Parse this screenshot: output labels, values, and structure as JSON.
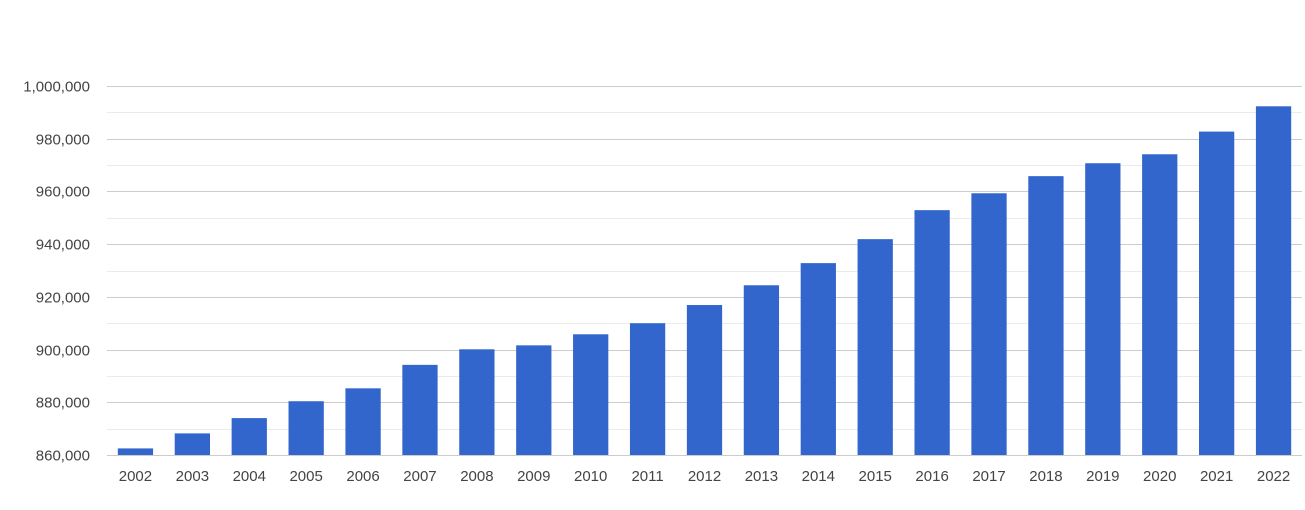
{
  "chart_data": {
    "type": "bar",
    "title": "",
    "xlabel": "",
    "ylabel": "",
    "categories": [
      "2002",
      "2003",
      "2004",
      "2005",
      "2006",
      "2007",
      "2008",
      "2009",
      "2010",
      "2011",
      "2012",
      "2013",
      "2014",
      "2015",
      "2016",
      "2017",
      "2018",
      "2019",
      "2020",
      "2021",
      "2022"
    ],
    "values": [
      862500,
      868200,
      874000,
      880400,
      885300,
      894200,
      900100,
      901600,
      905800,
      910000,
      916900,
      924400,
      932800,
      941900,
      952900,
      959300,
      965800,
      970700,
      974100,
      982700,
      992300
    ],
    "ylim": [
      860000,
      1000000
    ],
    "y_ticks": [
      860000,
      880000,
      900000,
      920000,
      940000,
      960000,
      980000,
      1000000
    ],
    "y_tick_labels": [
      "860,000",
      "880,000",
      "900,000",
      "920,000",
      "940,000",
      "960,000",
      "980,000",
      "1,000,000"
    ],
    "minor_gridlines": true,
    "grid": true,
    "legend": "none",
    "colors": {
      "bar": "#3366cc",
      "major_grid": "#cccccc",
      "minor_grid": "#ebebeb",
      "tick_text": "#444444"
    }
  }
}
